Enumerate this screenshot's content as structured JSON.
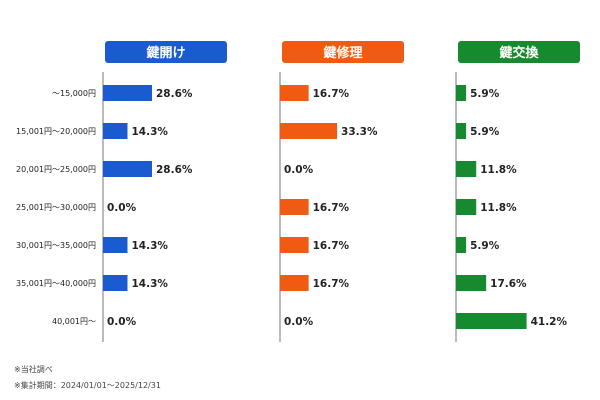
{
  "chart_data": {
    "type": "bar",
    "orientation": "horizontal",
    "categories": [
      "～15,000円",
      "15,001円～20,000円",
      "20,001円～25,000円",
      "25,001円～30,000円",
      "30,001円～35,000円",
      "35,001円～40,000円",
      "40,001円～"
    ],
    "series": [
      {
        "name": "鍵開け",
        "color": "#1a5ccf",
        "values": [
          28.6,
          14.3,
          28.6,
          0.0,
          14.3,
          14.3,
          0.0
        ],
        "labels": [
          "28.6%",
          "14.3%",
          "28.6%",
          "0.0%",
          "14.3%",
          "14.3%",
          "0.0%"
        ]
      },
      {
        "name": "鍵修理",
        "color": "#f05a12",
        "values": [
          16.7,
          33.3,
          0.0,
          16.7,
          16.7,
          16.7,
          0.0
        ],
        "labels": [
          "16.7%",
          "33.3%",
          "0.0%",
          "16.7%",
          "16.7%",
          "16.7%",
          "0.0%"
        ]
      },
      {
        "name": "鍵交換",
        "color": "#17892f",
        "values": [
          5.9,
          5.9,
          11.8,
          11.8,
          5.9,
          17.6,
          41.2
        ],
        "labels": [
          "5.9%",
          "5.9%",
          "11.8%",
          "11.8%",
          "5.9%",
          "17.6%",
          "41.2%"
        ]
      }
    ],
    "unit": "%"
  },
  "notes": {
    "line1": "※当社調べ",
    "line2": "※集計期間：2024/01/01～2025/12/31"
  }
}
